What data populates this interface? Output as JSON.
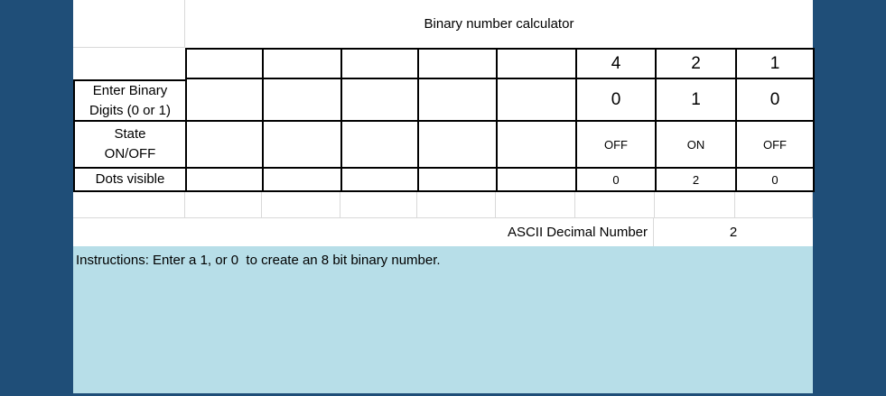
{
  "title": "Binary number calculator",
  "bit_columns": {
    "headers": [
      "",
      "",
      "",
      "",
      "",
      "4",
      "2",
      "1"
    ]
  },
  "rows": {
    "binary": {
      "label_lines": [
        "Enter Binary",
        "Digits (0 or 1)"
      ],
      "values": [
        "",
        "",
        "",
        "",
        "",
        "0",
        "1",
        "0"
      ]
    },
    "state": {
      "label_lines": [
        "State",
        "ON/OFF"
      ],
      "values": [
        "",
        "",
        "",
        "",
        "",
        "OFF",
        "ON",
        "OFF"
      ]
    },
    "dots": {
      "label": "Dots visible",
      "values": [
        "",
        "",
        "",
        "",
        "",
        "0",
        "2",
        "0"
      ]
    }
  },
  "ascii": {
    "label": "ASCII Decimal Number",
    "value": "2"
  },
  "instructions": "Instructions: Enter a 1, or 0  to create an 8 bit binary number.",
  "colors": {
    "background_navy": "#1F4E78",
    "instructions_blue": "#B7DEE8",
    "gridline_gray": "#D9D9D9",
    "cell_border_black": "#000000",
    "cell_white": "#FFFFFF",
    "text_black": "#000000"
  }
}
